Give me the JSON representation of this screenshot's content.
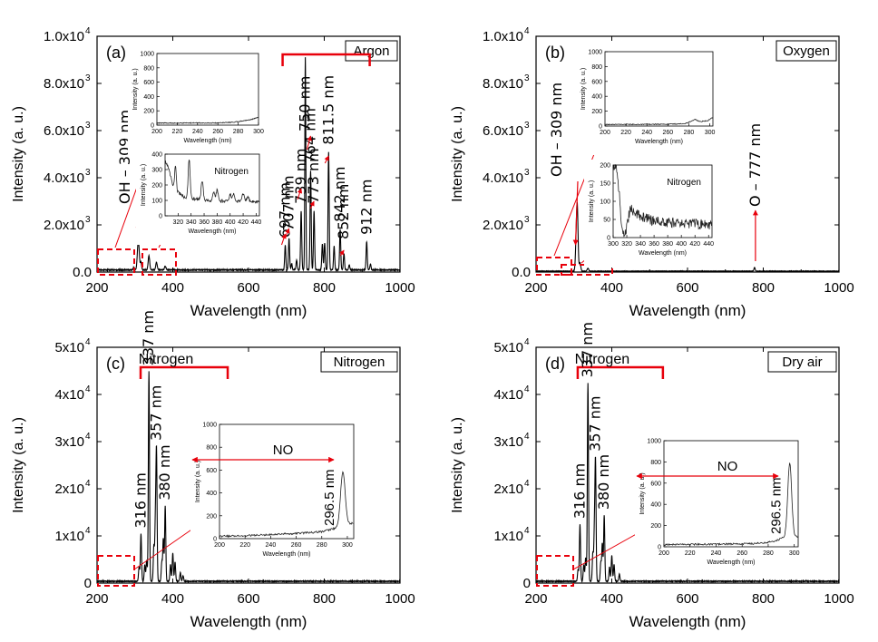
{
  "colors": {
    "spectrum": "#000000",
    "annotation": "#e8000b",
    "frame": "#000000"
  },
  "chart_data": [
    {
      "type": "line",
      "panel_label": "(a)",
      "gas": "Argon",
      "xlabel": "Wavelength (nm)",
      "ylabel": "Intensity (a. u.)",
      "xlim": [
        200,
        1000
      ],
      "ylim": [
        0,
        10000
      ],
      "xticks": [
        "200",
        "400",
        "600",
        "800",
        "1000"
      ],
      "yticks": [
        {
          "v": 0,
          "m": "0.0",
          "e": ""
        },
        {
          "v": 2000,
          "m": "2.0x10",
          "e": "3"
        },
        {
          "v": 4000,
          "m": "4.0x10",
          "e": "3"
        },
        {
          "v": 6000,
          "m": "6.0x10",
          "e": "3"
        },
        {
          "v": 8000,
          "m": "8.0x10",
          "e": "3"
        },
        {
          "v": 10000,
          "m": "1.0x10",
          "e": "4"
        }
      ],
      "baseline": 70,
      "peaks": [
        [
          297,
          120,
          1.5
        ],
        [
          309,
          1250,
          2.5
        ],
        [
          316,
          320,
          1.5
        ],
        [
          337,
          600,
          2
        ],
        [
          357,
          320,
          2
        ],
        [
          380,
          160,
          2
        ],
        [
          697,
          1050,
          1.5
        ],
        [
          707,
          1350,
          1.5
        ],
        [
          714,
          260,
          1.5
        ],
        [
          727,
          420,
          1.5
        ],
        [
          739,
          2500,
          1.5
        ],
        [
          750,
          9000,
          1.3
        ],
        [
          764,
          4200,
          1.5
        ],
        [
          773,
          2500,
          1.5
        ],
        [
          795,
          1100,
          1.5
        ],
        [
          801,
          1150,
          1.5
        ],
        [
          811.5,
          5000,
          1.5
        ],
        [
          826,
          1000,
          1.5
        ],
        [
          842,
          1700,
          1.5
        ],
        [
          852,
          700,
          1.5
        ],
        [
          866,
          220,
          1.5
        ],
        [
          912,
          1200,
          1.5
        ],
        [
          922,
          250,
          1.5
        ]
      ],
      "line_labels": [
        {
          "text": "OH – 309 nm",
          "x": 309
        },
        {
          "text": "697 nm",
          "x": 697
        },
        {
          "text": "707 nm",
          "x": 707
        },
        {
          "text": "739 nm",
          "x": 739
        },
        {
          "text": "750 nm",
          "x": 750
        },
        {
          "text": "764 nm",
          "x": 764
        },
        {
          "text": "773 nm",
          "x": 773
        },
        {
          "text": "811.5 nm",
          "x": 811.5
        },
        {
          "text": "842 nm",
          "x": 842
        },
        {
          "text": "852 nm",
          "x": 852
        },
        {
          "text": "912 nm",
          "x": 912
        }
      ],
      "bracket_range": [
        690,
        920
      ],
      "insets": [
        {
          "xlabel": "Wavelength (nm)",
          "ylabel": "Intensity (a. u.)",
          "xlim": [
            200,
            300
          ],
          "ylim": [
            0,
            1000
          ],
          "xticks": [
            "200",
            "220",
            "240",
            "260",
            "280",
            "300"
          ],
          "yticks": [
            "0",
            "200",
            "400",
            "600",
            "800",
            "1000"
          ],
          "title": "",
          "noise": 6,
          "trace": [
            [
              200,
              30
            ],
            [
              220,
              28
            ],
            [
              240,
              32
            ],
            [
              260,
              30
            ],
            [
              275,
              40
            ],
            [
              285,
              60
            ],
            [
              292,
              75
            ],
            [
              300,
              110
            ]
          ],
          "peaks": []
        },
        {
          "xlabel": "Wavelength (nm)",
          "ylabel": "Intensity (a. u.)",
          "xlim": [
            300,
            445
          ],
          "ylim": [
            0,
            400
          ],
          "xticks": [
            "320",
            "340",
            "360",
            "380",
            "400",
            "420",
            "440"
          ],
          "yticks": [
            "0",
            "100",
            "200",
            "300",
            "400"
          ],
          "title": "Nitrogen",
          "noise": 10,
          "trace": [
            [
              300,
              360
            ],
            [
              306,
              300
            ],
            [
              312,
              200
            ],
            [
              318,
              160
            ],
            [
              330,
              120
            ],
            [
              360,
              100
            ],
            [
              400,
              95
            ],
            [
              445,
              90
            ]
          ],
          "peaks": [
            [
              316,
              160,
              1.2
            ],
            [
              337,
              250,
              1.5
            ],
            [
              357,
              130,
              1.5
            ],
            [
              375,
              60,
              1.5
            ],
            [
              380,
              70,
              1.5
            ],
            [
              400,
              45,
              1.5
            ],
            [
              405,
              50,
              1.5
            ],
            [
              420,
              50,
              1.5
            ],
            [
              427,
              40,
              1.5
            ]
          ]
        }
      ]
    },
    {
      "type": "line",
      "panel_label": "(b)",
      "gas": "Oxygen",
      "xlabel": "Wavelength (nm)",
      "ylabel": "Intensity (a. u.)",
      "xlim": [
        200,
        1000
      ],
      "ylim": [
        0,
        10000
      ],
      "xticks": [
        "200",
        "400",
        "600",
        "800",
        "1000"
      ],
      "yticks": [
        {
          "v": 0,
          "m": "0.0",
          "e": ""
        },
        {
          "v": 2000,
          "m": "2.0x10",
          "e": "3"
        },
        {
          "v": 4000,
          "m": "4.0x10",
          "e": "3"
        },
        {
          "v": 6000,
          "m": "6.0x10",
          "e": "3"
        },
        {
          "v": 8000,
          "m": "8.0x10",
          "e": "3"
        },
        {
          "v": 10000,
          "m": "1.0x10",
          "e": "4"
        }
      ],
      "baseline": 30,
      "peaks": [
        [
          306,
          1100,
          2
        ],
        [
          309,
          2500,
          2
        ],
        [
          316,
          350,
          2
        ],
        [
          337,
          120,
          2
        ],
        [
          777,
          160,
          1.5
        ]
      ],
      "line_labels": [
        {
          "text": "OH – 309 nm",
          "x": 309
        },
        {
          "text": "O – 777 nm",
          "x": 777
        }
      ],
      "insets": [
        {
          "xlabel": "Wavelength (nm)",
          "ylabel": "Intensity (a. u.)",
          "xlim": [
            200,
            303
          ],
          "ylim": [
            0,
            1000
          ],
          "xticks": [
            "200",
            "220",
            "240",
            "260",
            "280",
            "300"
          ],
          "yticks": [
            "0",
            "200",
            "400",
            "600",
            "800",
            "1000"
          ],
          "title": "",
          "noise": 6,
          "trace": [
            [
              200,
              20
            ],
            [
              230,
              22
            ],
            [
              260,
              25
            ],
            [
              275,
              30
            ],
            [
              282,
              60
            ],
            [
              286,
              90
            ],
            [
              290,
              60
            ],
            [
              298,
              70
            ],
            [
              303,
              120
            ]
          ],
          "peaks": []
        },
        {
          "xlabel": "Wavelength (nm)",
          "ylabel": "Intensity (a. u.)",
          "xlim": [
            300,
            445
          ],
          "ylim": [
            0,
            200
          ],
          "xticks": [
            "300",
            "320",
            "340",
            "360",
            "380",
            "400",
            "420",
            "440"
          ],
          "yticks": [
            "0",
            "50",
            "100",
            "150",
            "200"
          ],
          "title": "Nitrogen",
          "noise": 14,
          "trace": [
            [
              300,
              200
            ],
            [
              305,
              190
            ],
            [
              309,
              120
            ],
            [
              313,
              20
            ],
            [
              318,
              10
            ],
            [
              325,
              80
            ],
            [
              340,
              60
            ],
            [
              360,
              45
            ],
            [
              400,
              40
            ],
            [
              445,
              35
            ]
          ],
          "peaks": []
        }
      ]
    },
    {
      "type": "line",
      "panel_label": "(c)",
      "gas": "Nitrogen",
      "xlabel": "Wavelength (nm)",
      "ylabel": "Intensity (a. u.)",
      "xlim": [
        200,
        1000
      ],
      "ylim": [
        0,
        50000
      ],
      "xticks": [
        "200",
        "400",
        "600",
        "800",
        "1000"
      ],
      "yticks": [
        {
          "v": 0,
          "m": "0",
          "e": ""
        },
        {
          "v": 10000,
          "m": "1x10",
          "e": "4"
        },
        {
          "v": 20000,
          "m": "2x10",
          "e": "4"
        },
        {
          "v": 30000,
          "m": "3x10",
          "e": "4"
        },
        {
          "v": 40000,
          "m": "4x10",
          "e": "4"
        },
        {
          "v": 50000,
          "m": "5x10",
          "e": "4"
        }
      ],
      "baseline": 300,
      "peaks": [
        [
          311,
          3000,
          1.5
        ],
        [
          316,
          10000,
          1.5
        ],
        [
          326,
          3500,
          1.5
        ],
        [
          331,
          4500,
          1.5
        ],
        [
          337,
          44500,
          1.5
        ],
        [
          350,
          7500,
          1.5
        ],
        [
          354,
          12000,
          1.5
        ],
        [
          357,
          27000,
          1.5
        ],
        [
          371,
          4000,
          1.5
        ],
        [
          375,
          9000,
          1.5
        ],
        [
          380,
          16000,
          1.5
        ],
        [
          394,
          3500,
          1.5
        ],
        [
          400,
          6000,
          1.5
        ],
        [
          406,
          4000,
          1.5
        ],
        [
          420,
          1800,
          1.5
        ],
        [
          427,
          1200,
          1.5
        ]
      ],
      "line_labels": [
        {
          "text": "316 nm",
          "x": 316
        },
        {
          "text": "337 nm",
          "x": 337
        },
        {
          "text": "357 nm",
          "x": 357
        },
        {
          "text": "380 nm",
          "x": 380
        }
      ],
      "bracket_label": "Nitrogen",
      "bracket_range": [
        315,
        545
      ],
      "insets": [
        {
          "xlabel": "Wavelength (nm)",
          "ylabel": "Intensity (a. u.)",
          "xlim": [
            200,
            305
          ],
          "ylim": [
            0,
            1000
          ],
          "xticks": [
            "200",
            "220",
            "240",
            "260",
            "280",
            "300"
          ],
          "yticks": [
            "0",
            "200",
            "400",
            "600",
            "800",
            "1000"
          ],
          "title": "",
          "arrow_label": "NO",
          "peak_label": "296.5 nm",
          "noise": 8,
          "trace": [
            [
              200,
              20
            ],
            [
              230,
              30
            ],
            [
              260,
              45
            ],
            [
              280,
              60
            ],
            [
              290,
              90
            ],
            [
              300,
              120
            ],
            [
              305,
              140
            ]
          ],
          "peaks": [
            [
              296.5,
              480,
              1.8
            ]
          ]
        }
      ]
    },
    {
      "type": "line",
      "panel_label": "(d)",
      "gas": "Dry air",
      "xlabel": "Wavelength (nm)",
      "ylabel": "Intensity (a. u.)",
      "xlim": [
        200,
        1000
      ],
      "ylim": [
        0,
        50000
      ],
      "xticks": [
        "200",
        "400",
        "600",
        "800",
        "1000"
      ],
      "yticks": [
        {
          "v": 0,
          "m": "0",
          "e": ""
        },
        {
          "v": 10000,
          "m": "1x10",
          "e": "4"
        },
        {
          "v": 20000,
          "m": "2x10",
          "e": "4"
        },
        {
          "v": 30000,
          "m": "3x10",
          "e": "4"
        },
        {
          "v": 40000,
          "m": "4x10",
          "e": "4"
        },
        {
          "v": 50000,
          "m": "5x10",
          "e": "4"
        }
      ],
      "baseline": 300,
      "peaks": [
        [
          311,
          2500,
          1.5
        ],
        [
          316,
          12000,
          1.5
        ],
        [
          326,
          3500,
          1.5
        ],
        [
          331,
          5000,
          1.5
        ],
        [
          337,
          42000,
          1.5
        ],
        [
          350,
          6000,
          1.5
        ],
        [
          354,
          10000,
          1.5
        ],
        [
          357,
          25000,
          1.5
        ],
        [
          371,
          4000,
          1.5
        ],
        [
          375,
          8000,
          1.5
        ],
        [
          380,
          14000,
          1.5
        ],
        [
          394,
          3000,
          1.5
        ],
        [
          400,
          5500,
          1.5
        ],
        [
          406,
          3500,
          1.5
        ],
        [
          420,
          1500,
          1.5
        ]
      ],
      "line_labels": [
        {
          "text": "316 nm",
          "x": 316
        },
        {
          "text": "337 nm",
          "x": 337
        },
        {
          "text": "357 nm",
          "x": 357
        },
        {
          "text": "380 nm",
          "x": 380
        }
      ],
      "bracket_label": "Nitrogen",
      "bracket_range": [
        310,
        535
      ],
      "insets": [
        {
          "xlabel": "Wavelength (nm)",
          "ylabel": "Intensity (a. u.)",
          "xlim": [
            200,
            303
          ],
          "ylim": [
            0,
            1000
          ],
          "xticks": [
            "200",
            "220",
            "240",
            "260",
            "280",
            "300"
          ],
          "yticks": [
            "0",
            "200",
            "400",
            "600",
            "800",
            "1000"
          ],
          "title": "",
          "arrow_label": "NO",
          "peak_label": "296.5 nm",
          "noise": 8,
          "trace": [
            [
              200,
              20
            ],
            [
              240,
              25
            ],
            [
              270,
              30
            ],
            [
              285,
              50
            ],
            [
              292,
              90
            ],
            [
              300,
              90
            ],
            [
              303,
              100
            ]
          ],
          "peaks": [
            [
              296.5,
              700,
              1.5
            ]
          ]
        }
      ]
    }
  ]
}
